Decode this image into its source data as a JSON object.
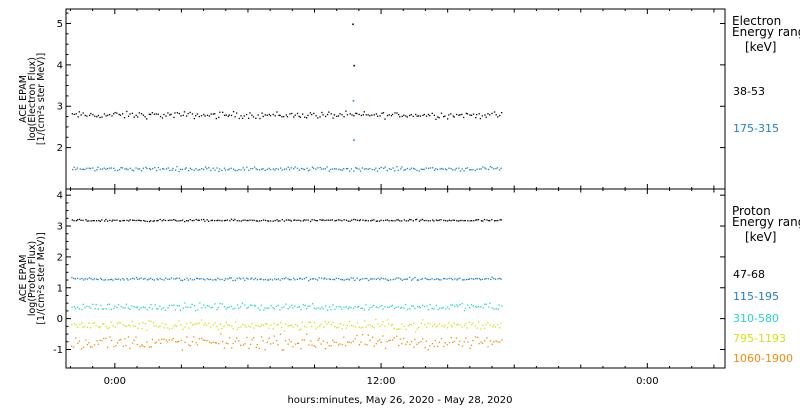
{
  "xlabel": "hours:minutes, May 26, 2020 - May 28, 2020",
  "x_ticks": [
    {
      "label": "0:00",
      "hours": 0
    },
    {
      "label": "12:00",
      "hours": 12
    },
    {
      "label": "0:00",
      "hours": 24
    }
  ],
  "chart_data": [
    {
      "type": "scatter",
      "panel": "electron",
      "ylabel": [
        "ACE EPAM",
        "log(Electron Flux)",
        "[1/(cm²s ster MeV)]"
      ],
      "ylim": [
        1.0,
        5.35
      ],
      "xlim_hours": [
        -2.2,
        27.5
      ],
      "y_ticks": [
        2,
        3,
        4,
        5
      ],
      "legend_title": [
        "Electron",
        "Energy ranges",
        "[keV]"
      ],
      "data_end_hours": 17.4,
      "series": [
        {
          "name": "38-53",
          "color": "#000000",
          "mean": 2.8,
          "spread": 0.05
        },
        {
          "name": "175-315",
          "color": "#1f7fc9",
          "mean": 1.5,
          "spread": 0.03
        }
      ],
      "spikes": [
        {
          "x_hours": 10.7,
          "y": 5.0,
          "color": "#000000"
        },
        {
          "x_hours": 10.75,
          "y": 4.0,
          "color": "#000000"
        },
        {
          "x_hours": 10.72,
          "y": 3.15,
          "color": "#1f7fc9"
        },
        {
          "x_hours": 10.74,
          "y": 2.2,
          "color": "#1f7fc9"
        }
      ]
    },
    {
      "type": "scatter",
      "panel": "proton",
      "ylabel": [
        "ACE EPAM",
        "log(Proton Flux)",
        "[1/(cm²s ster MeV)]"
      ],
      "ylim": [
        -1.6,
        4.2
      ],
      "xlim_hours": [
        -2.2,
        27.5
      ],
      "y_ticks": [
        -1,
        0,
        1,
        2,
        3,
        4
      ],
      "legend_title": [
        "Proton",
        "Energy ranges",
        "[keV]"
      ],
      "data_end_hours": 17.4,
      "series": [
        {
          "name": "47-68",
          "color": "#000000",
          "mean": 3.2,
          "spread": 0.02
        },
        {
          "name": "115-195",
          "color": "#1f7fc9",
          "mean": 1.3,
          "spread": 0.03
        },
        {
          "name": "310-580",
          "color": "#22d4cf",
          "mean": 0.4,
          "spread": 0.07
        },
        {
          "name": "795-1193",
          "color": "#d4e014",
          "mean": -0.2,
          "spread": 0.1
        },
        {
          "name": "1060-1900",
          "color": "#f08a0c",
          "mean": -0.75,
          "spread": 0.14
        }
      ]
    }
  ]
}
